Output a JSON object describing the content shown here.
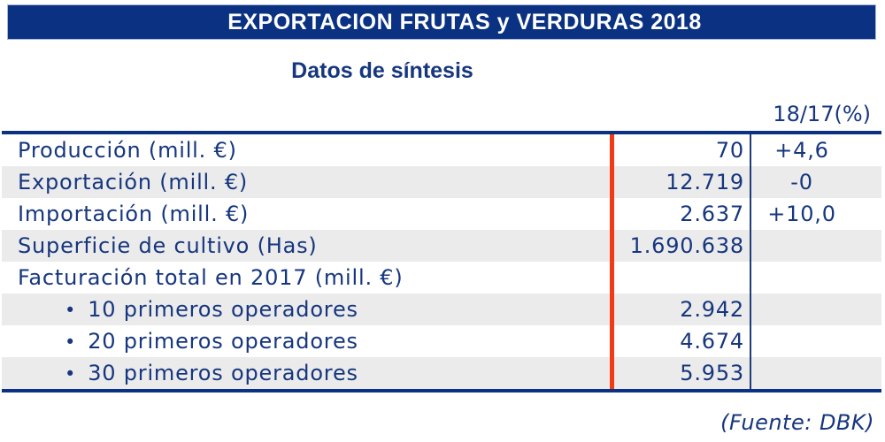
{
  "banner": {
    "title": "EXPORTACION FRUTAS y VERDURAS 2018"
  },
  "subtitle": "Datos de síntesis",
  "table": {
    "pct_header": "18/17(%)",
    "bullet": "•",
    "rows": [
      {
        "label": "Producción (mill. €)",
        "indent": false,
        "value": "70",
        "pct": "+4,6"
      },
      {
        "label": "Exportación (mill. €)",
        "indent": false,
        "value": "12.719",
        "pct": "-0"
      },
      {
        "label": "Importación (mill. €)",
        "indent": false,
        "value": "2.637",
        "pct": "+10,0"
      },
      {
        "label": "Superficie de cultivo (Has)",
        "indent": false,
        "value": "1.690.638",
        "pct": ""
      },
      {
        "label": "Facturación total en 2017 (mill. €)",
        "indent": false,
        "value": "",
        "pct": ""
      },
      {
        "label": "10 primeros operadores",
        "indent": true,
        "value": "2.942",
        "pct": ""
      },
      {
        "label": "20 primeros operadores",
        "indent": true,
        "value": "4.674",
        "pct": ""
      },
      {
        "label": "30 primeros operadores",
        "indent": true,
        "value": "5.953",
        "pct": ""
      }
    ]
  },
  "footer": {
    "source": "(Fuente: DBK)"
  },
  "colors": {
    "navy": "#0b3282",
    "text-navy": "#16367e",
    "stripe": "#ebebeb",
    "red": "#f03b14",
    "line-navy": "#1f3c78",
    "banner-border": "#a8b8d8"
  }
}
